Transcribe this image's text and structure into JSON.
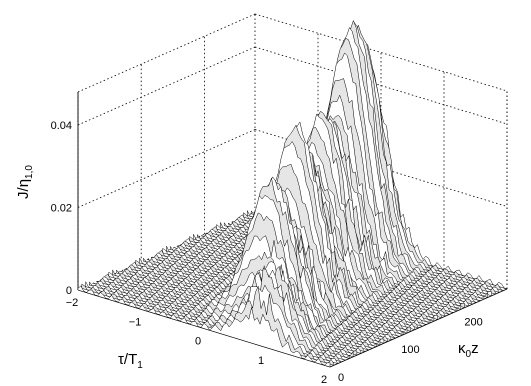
{
  "chart_data": {
    "type": "surface",
    "title": "",
    "xlabel": {
      "main": "τ/T",
      "sub": "1"
    },
    "ylabel": {
      "main": "κ",
      "sub": "0",
      "tail": "z"
    },
    "zlabel": {
      "main": "J/η",
      "sub": "1,0"
    },
    "xlim": [
      -2,
      2
    ],
    "ylim": [
      0,
      280
    ],
    "zlim": [
      0,
      0.04
    ],
    "x_ticks": [
      "−2",
      "−1",
      "0",
      "1",
      "2"
    ],
    "y_ticks": [
      "0",
      "100",
      "200"
    ],
    "z_ticks": [
      "0",
      "0.02",
      "0.04"
    ],
    "grid": true,
    "peaks": [
      {
        "tau": 0.8,
        "kappa_z": 25,
        "height": 0.011
      },
      {
        "tau": 0.35,
        "kappa_z": 70,
        "height": 0.031
      },
      {
        "tau": 0.15,
        "kappa_z": 130,
        "height": 0.039
      },
      {
        "tau": 0.0,
        "kappa_z": 185,
        "height": 0.036
      },
      {
        "tau": -0.1,
        "kappa_z": 235,
        "height": 0.042
      },
      {
        "tau": -0.2,
        "kappa_z": 270,
        "height": 0.04
      }
    ],
    "background_level": 0.001
  }
}
